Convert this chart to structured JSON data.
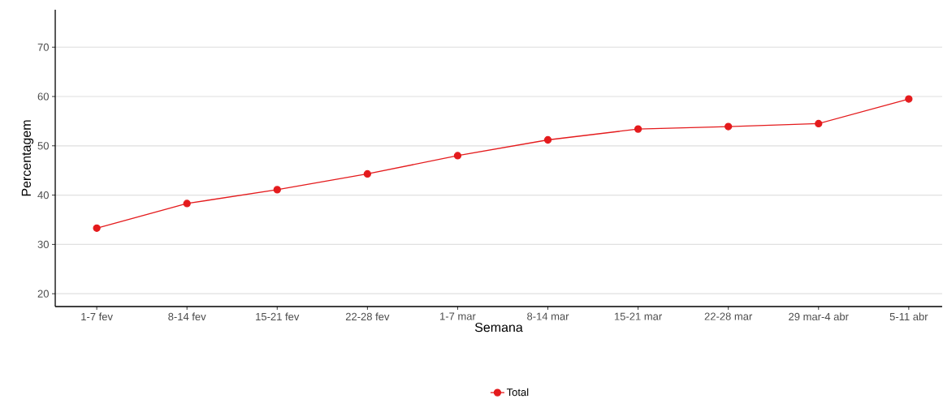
{
  "chart_data": {
    "type": "line",
    "xlabel": "Semana",
    "ylabel": "Percentagem",
    "categories": [
      "1-7 fev",
      "8-14 fev",
      "15-21 fev",
      "22-28 fev",
      "1-7 mar",
      "8-14 mar",
      "15-21 mar",
      "22-28 mar",
      "29 mar-4 abr",
      "5-11 abr"
    ],
    "series": [
      {
        "name": "Total",
        "color": "#e41a1c",
        "values": [
          33.3,
          38.3,
          41.1,
          44.3,
          48.0,
          51.2,
          53.4,
          53.9,
          54.5,
          59.5
        ]
      }
    ],
    "ylim": [
      17.4,
      77.6
    ],
    "yticks": [
      20,
      30,
      40,
      50,
      60,
      70
    ],
    "grid": "y",
    "legend": "bottom",
    "marker": "circle",
    "line_style": "solid"
  }
}
